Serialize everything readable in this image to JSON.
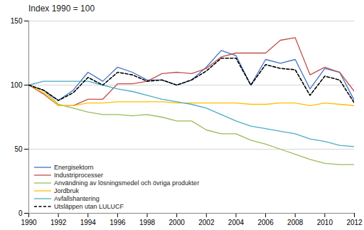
{
  "chart_data": {
    "type": "line",
    "title": "Index 1990 = 100",
    "x": [
      1990,
      1991,
      1992,
      1993,
      1994,
      1995,
      1996,
      1997,
      1998,
      1999,
      2000,
      2001,
      2002,
      2003,
      2004,
      2005,
      2006,
      2007,
      2008,
      2009,
      2010,
      2011,
      2012
    ],
    "series": [
      {
        "name": "Energisektorn",
        "color": "#4472C4",
        "line_style": "solid",
        "values": [
          100,
          96,
          88,
          96,
          110,
          103,
          114,
          110,
          104,
          104,
          100,
          104,
          114,
          127,
          123,
          100,
          120,
          117,
          120,
          97,
          113,
          110,
          88
        ]
      },
      {
        "name": "Industriprocesser",
        "color": "#C0504D",
        "line_style": "solid",
        "values": [
          100,
          93,
          84,
          84,
          89,
          89,
          101,
          101,
          103,
          109,
          110,
          109,
          113,
          122,
          125,
          125,
          125,
          135,
          137,
          108,
          114,
          110,
          95
        ]
      },
      {
        "name": "Användning av lösningsmedel och övriga produkter",
        "color": "#9BBB59",
        "line_style": "solid",
        "values": [
          100,
          96,
          85,
          82,
          79,
          77,
          77,
          76,
          77,
          75,
          72,
          72,
          65,
          62,
          62,
          57,
          54,
          50,
          46,
          42,
          39,
          38,
          38
        ]
      },
      {
        "name": "Jordbruk",
        "color": "#FFBF00",
        "line_style": "solid",
        "values": [
          100,
          94,
          84,
          84,
          86,
          86,
          87,
          87,
          87,
          87,
          86,
          86,
          86,
          86,
          86,
          85,
          85,
          86,
          86,
          84,
          86,
          85,
          84
        ]
      },
      {
        "name": "Avfallshantering",
        "color": "#4BACC6",
        "line_style": "solid",
        "values": [
          100,
          103,
          103,
          103,
          103,
          100,
          97,
          95,
          92,
          89,
          87,
          85,
          82,
          77,
          72,
          68,
          66,
          64,
          62,
          58,
          56,
          53,
          52
        ]
      },
      {
        "name": "Utsläppen utan LULUCF",
        "color": "#000000",
        "line_style": "dashed",
        "values": [
          100,
          96,
          88,
          94,
          106,
          100,
          110,
          108,
          103,
          104,
          100,
          104,
          111,
          121,
          121,
          100,
          116,
          113,
          112,
          92,
          107,
          104,
          86
        ]
      }
    ],
    "xlim": [
      1990,
      2012
    ],
    "xticks": [
      1990,
      1992,
      1994,
      1996,
      1998,
      2000,
      2002,
      2004,
      2006,
      2008,
      2010,
      2012
    ],
    "ylim": [
      0,
      150
    ],
    "yticks": [
      0,
      50,
      100,
      150
    ],
    "grid": true,
    "legend": "lower left"
  }
}
